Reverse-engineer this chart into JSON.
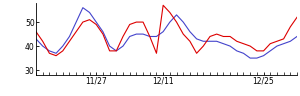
{
  "red_values": [
    46,
    42,
    37,
    36,
    38,
    42,
    46,
    50,
    51,
    49,
    45,
    38,
    38,
    44,
    49,
    50,
    50,
    44,
    37,
    57,
    54,
    50,
    45,
    42,
    37,
    40,
    44,
    45,
    44,
    44,
    42,
    41,
    40,
    38,
    38,
    41,
    42,
    43,
    48,
    52
  ],
  "blue_values": [
    43,
    40,
    38,
    37,
    40,
    44,
    50,
    56,
    54,
    50,
    46,
    40,
    38,
    40,
    44,
    45,
    45,
    44,
    44,
    46,
    50,
    53,
    50,
    46,
    43,
    42,
    42,
    42,
    41,
    40,
    38,
    37,
    35,
    35,
    36,
    38,
    40,
    41,
    42,
    44
  ],
  "xlim": [
    0,
    39
  ],
  "ylim": [
    28,
    58
  ],
  "yticks": [
    30,
    40,
    50
  ],
  "xtick_positions": [
    9,
    19,
    34
  ],
  "xtick_labels": [
    "11/27",
    "12/11",
    "12/25"
  ],
  "red_color": "#dd0000",
  "blue_color": "#4444cc",
  "bg_color": "#ffffff",
  "linewidth": 0.8
}
